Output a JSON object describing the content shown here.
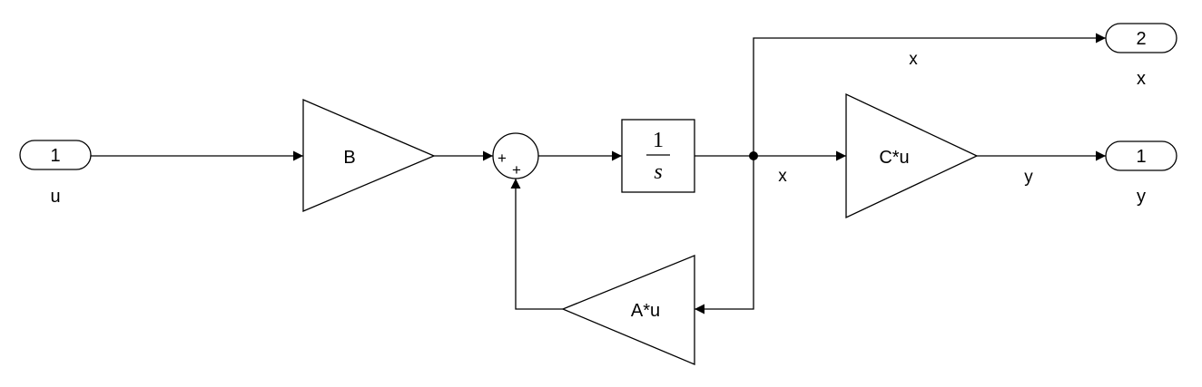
{
  "inports": [
    {
      "number": "1",
      "name": "u"
    }
  ],
  "outports": [
    {
      "number": "1",
      "name": "y"
    },
    {
      "number": "2",
      "name": "x"
    }
  ],
  "blocks": {
    "gain_b": "B",
    "gain_c": "C*u",
    "gain_a": "A*u",
    "sum_signs": [
      "+",
      "+"
    ],
    "integrator": {
      "numerator": "1",
      "denominator": "s"
    }
  },
  "signals": {
    "x_branch_top": "x",
    "x_main": "x",
    "y_out": "y"
  }
}
